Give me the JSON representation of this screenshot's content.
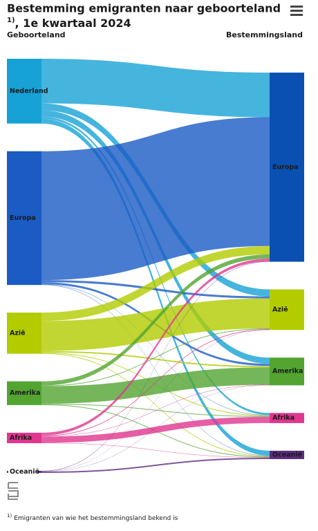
{
  "chart_data": {
    "type": "sankey",
    "title": "Bestemming emigranten naar geboorteland",
    "title_note": "1)",
    "subtitle": ", 1e kwartaal 2024",
    "source_label": "Geboorteland",
    "target_label": "Bestemmingsland",
    "sources": [
      {
        "name": "Nederland",
        "color": "#17a2d6"
      },
      {
        "name": "Europa",
        "color": "#1a5bc4"
      },
      {
        "name": "Azië",
        "color": "#b2cc00"
      },
      {
        "name": "Amerika",
        "color": "#53a431"
      },
      {
        "name": "Afrika",
        "color": "#e0368e"
      },
      {
        "name": "Oceanië",
        "color": "#5b2c80"
      }
    ],
    "targets": [
      {
        "name": "Europa",
        "color": "#0a50b3"
      },
      {
        "name": "Azië",
        "color": "#b2cc00"
      },
      {
        "name": "Amerika",
        "color": "#53a431"
      },
      {
        "name": "Afrika",
        "color": "#e0368e"
      },
      {
        "name": "Oceanië",
        "color": "#5b2c80"
      }
    ],
    "links": [
      {
        "source": 0,
        "target": 0,
        "value": 6400
      },
      {
        "source": 0,
        "target": 1,
        "value": 1000
      },
      {
        "source": 0,
        "target": 2,
        "value": 900
      },
      {
        "source": 0,
        "target": 3,
        "value": 300
      },
      {
        "source": 0,
        "target": 4,
        "value": 700
      },
      {
        "source": 1,
        "target": 0,
        "value": 18500
      },
      {
        "source": 1,
        "target": 1,
        "value": 300
      },
      {
        "source": 1,
        "target": 2,
        "value": 300
      },
      {
        "source": 1,
        "target": 3,
        "value": 50
      },
      {
        "source": 1,
        "target": 4,
        "value": 50
      },
      {
        "source": 2,
        "target": 0,
        "value": 1200
      },
      {
        "source": 2,
        "target": 1,
        "value": 4300
      },
      {
        "source": 2,
        "target": 2,
        "value": 200
      },
      {
        "source": 2,
        "target": 3,
        "value": 100
      },
      {
        "source": 2,
        "target": 4,
        "value": 100
      },
      {
        "source": 3,
        "target": 0,
        "value": 600
      },
      {
        "source": 3,
        "target": 1,
        "value": 100
      },
      {
        "source": 3,
        "target": 2,
        "value": 2500
      },
      {
        "source": 3,
        "target": 3,
        "value": 100
      },
      {
        "source": 3,
        "target": 4,
        "value": 100
      },
      {
        "source": 4,
        "target": 0,
        "value": 400
      },
      {
        "source": 4,
        "target": 1,
        "value": 100
      },
      {
        "source": 4,
        "target": 2,
        "value": 50
      },
      {
        "source": 4,
        "target": 3,
        "value": 900
      },
      {
        "source": 4,
        "target": 4,
        "value": 50
      },
      {
        "source": 5,
        "target": 0,
        "value": 50
      },
      {
        "source": 5,
        "target": 1,
        "value": 20
      },
      {
        "source": 5,
        "target": 2,
        "value": 30
      },
      {
        "source": 5,
        "target": 4,
        "value": 200
      }
    ]
  },
  "footnote": {
    "marker": "1)",
    "text": "Emigranten van wie het bestemmingsland bekend is"
  }
}
